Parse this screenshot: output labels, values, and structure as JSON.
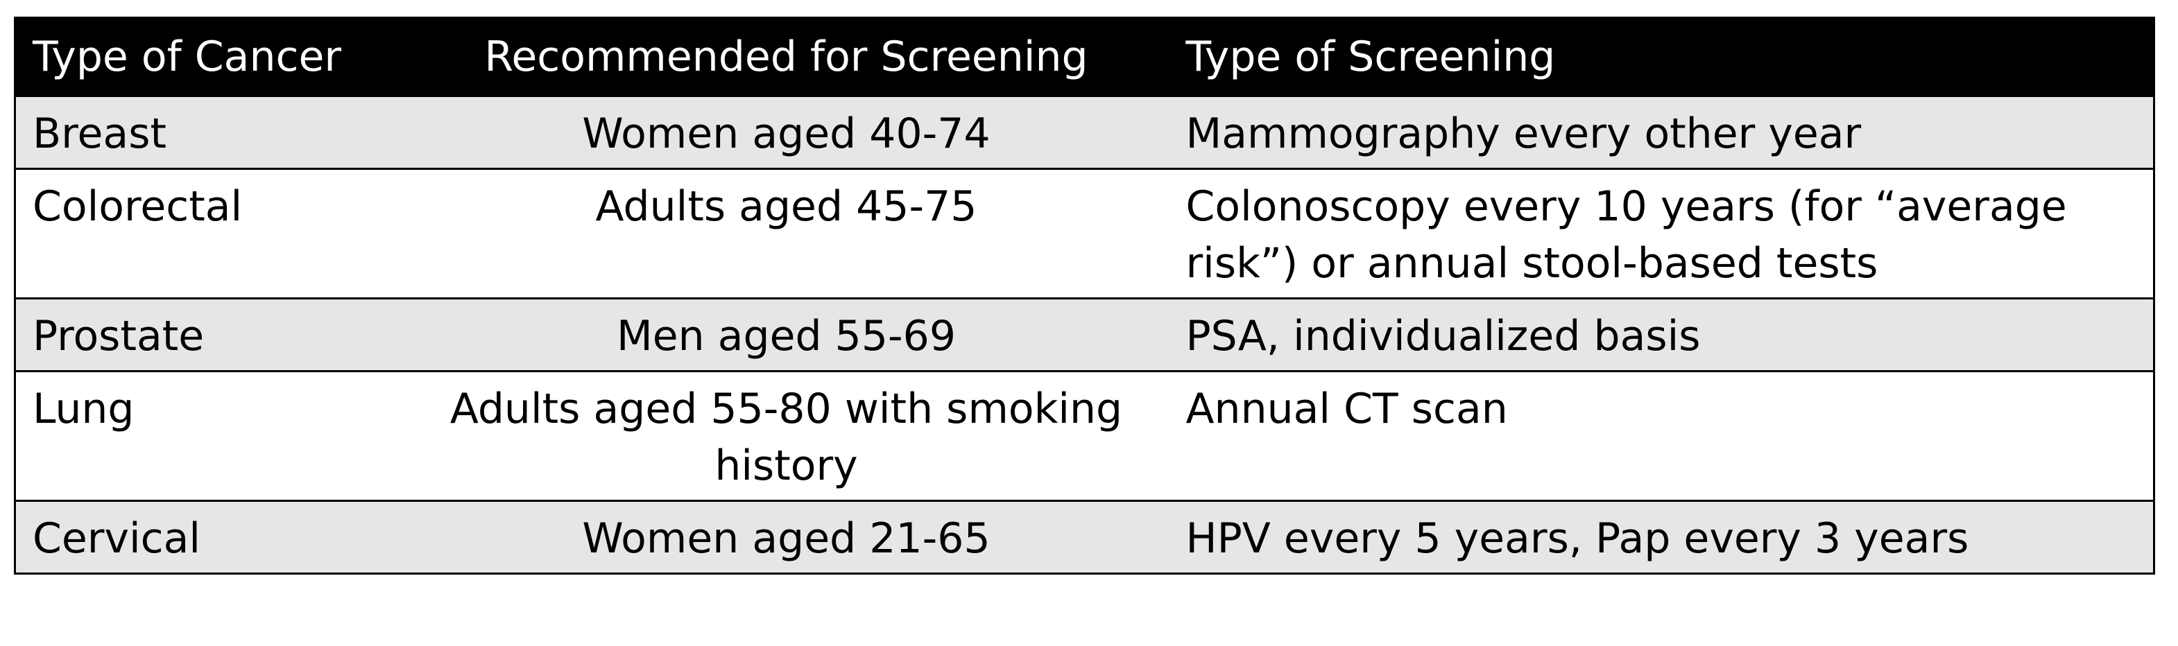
{
  "table": {
    "header": [
      "Type of Cancer",
      "Recommended for Screening",
      "Type of Screening"
    ],
    "rows": [
      [
        "Breast",
        "Women aged 40-74",
        "Mammography every other year"
      ],
      [
        "Colorectal",
        "Adults aged 45-75",
        "Colonoscopy every 10 years (for “average risk”) or annual stool-based tests"
      ],
      [
        "Prostate",
        "Men aged 55-69",
        "PSA, individualized basis"
      ],
      [
        "Lung",
        "Adults aged 55-80 with smoking history",
        "Annual CT scan"
      ],
      [
        "Cervical",
        "Women aged 21-65",
        "HPV every 5 years, Pap every 3 years"
      ]
    ]
  }
}
